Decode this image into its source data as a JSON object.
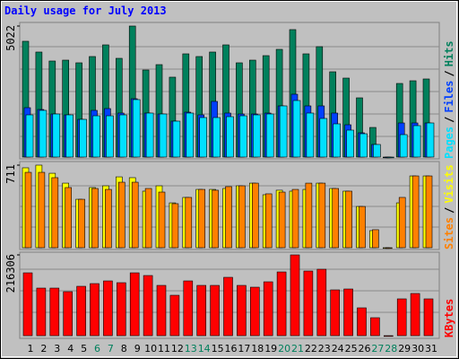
{
  "chart_data": [
    {
      "type": "bar",
      "title": "Daily usage for July 2013",
      "title_color": "#0000ff",
      "categories": [
        "1",
        "2",
        "3",
        "4",
        "5",
        "6",
        "7",
        "8",
        "9",
        "10",
        "11",
        "12",
        "13",
        "14",
        "15",
        "16",
        "17",
        "18",
        "19",
        "20",
        "21",
        "22",
        "23",
        "24",
        "25",
        "26",
        "27",
        "28",
        "29",
        "30",
        "31"
      ],
      "separator": "/",
      "series": [
        {
          "name": "Hits",
          "color": "#00805c",
          "values": [
            4438,
            4025,
            3681,
            3715,
            3612,
            3853,
            4300,
            3784,
            5022,
            3337,
            3543,
            3062,
            3956,
            3853,
            4025,
            4300,
            3612,
            3715,
            3887,
            4128,
            4885,
            3956,
            4231,
            3268,
            3027,
            2270,
            1135,
            0,
            2821,
            2924,
            2993
          ]
        },
        {
          "name": "Files",
          "color": "#0040ff",
          "values": [
            1892,
            1823,
            1651,
            1617,
            1445,
            1789,
            1858,
            1686,
            2236,
            1686,
            1651,
            1376,
            1720,
            1617,
            2133,
            1686,
            1651,
            1651,
            1686,
            1961,
            2408,
            1961,
            1961,
            1686,
            1238,
            929,
            482,
            0,
            1307,
            1307,
            1307
          ]
        },
        {
          "name": "Pages",
          "color": "#00e0ff",
          "values": [
            1617,
            1789,
            1651,
            1617,
            1445,
            1582,
            1582,
            1617,
            2202,
            1686,
            1651,
            1376,
            1686,
            1514,
            1514,
            1548,
            1582,
            1617,
            1651,
            1961,
            2167,
            1686,
            1479,
            1273,
            1032,
            894,
            482,
            0,
            860,
            1204,
            1307
          ]
        }
      ],
      "ylim": [
        0,
        5022
      ],
      "yticks": [
        5022
      ]
    },
    {
      "type": "bar",
      "separator": "/",
      "series": [
        {
          "name": "Visits",
          "color": "#ffff00",
          "values": [
            688,
            711,
            641,
            556,
            417,
            518,
            533,
            610,
            603,
            487,
            533,
            386,
            433,
            502,
            502,
            510,
            533,
            556,
            456,
            495,
            487,
            502,
            556,
            510,
            487,
            355,
            147,
            0,
            386,
            618,
            618
          ]
        },
        {
          "name": "Sites",
          "color": "#ff8000",
          "values": [
            649,
            649,
            603,
            518,
            417,
            510,
            502,
            564,
            564,
            510,
            479,
            379,
            433,
            502,
            495,
            526,
            533,
            556,
            464,
            479,
            502,
            556,
            556,
            510,
            487,
            355,
            155,
            0,
            433,
            618,
            618
          ]
        }
      ],
      "ylim": [
        0,
        711
      ],
      "yticks": [
        711
      ]
    },
    {
      "type": "bar",
      "series": [
        {
          "name": "KBytes",
          "color": "#ff0000",
          "values": [
            168238,
            127380,
            127380,
            117767,
            132187,
            139397,
            146607,
            141800,
            168238,
            161028,
            134590,
            108153,
            146607,
            134590,
            134590,
            156221,
            134590,
            129784,
            144204,
            170641,
            216306,
            173045,
            177852,
            122573,
            124977,
            74505,
            48068,
            0,
            98539,
            112960,
            98539
          ]
        }
      ],
      "ylim": [
        0,
        216306
      ],
      "yticks": [
        216306
      ],
      "highlight_categories": [
        "6",
        "7",
        "13",
        "14",
        "20",
        "21",
        "27",
        "28"
      ],
      "highlight_color": "#00805c"
    }
  ]
}
